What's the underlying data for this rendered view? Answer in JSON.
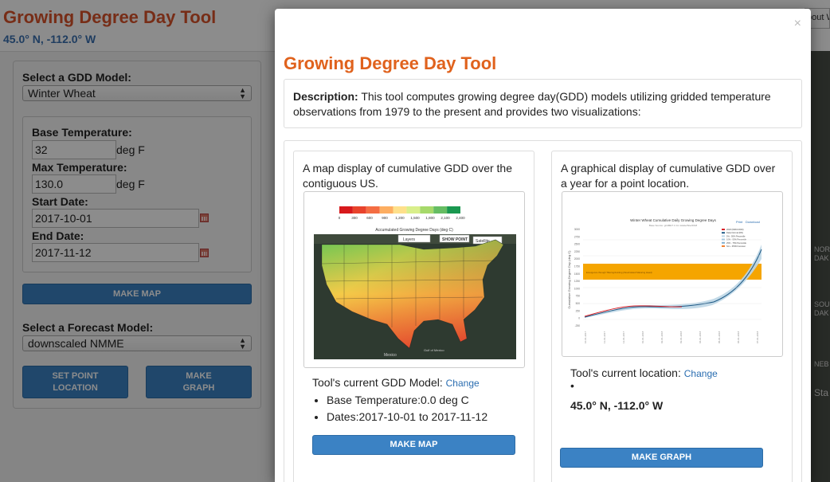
{
  "page": {
    "title": "Growing Degree Day Tool",
    "coords": "45.0° N, -112.0° W",
    "top_right_text": "bout W"
  },
  "form": {
    "gdd_model_label": "Select a GDD Model:",
    "gdd_model_value": "Winter Wheat",
    "base_temp_label": "Base Temperature:",
    "base_temp_value": "32",
    "base_temp_unit": "deg F",
    "max_temp_label": "Max Temperature:",
    "max_temp_value": "130.0",
    "max_temp_unit": "deg F",
    "start_date_label": "Start Date:",
    "start_date_value": "2017-10-01",
    "end_date_label": "End Date:",
    "end_date_value": "2017-11-12",
    "make_map_label": "MAKE MAP",
    "forecast_label": "Select a Forecast Model:",
    "forecast_value": "downscaled NMME",
    "set_point_label": "SET POINT LOCATION",
    "make_graph_label": "MAKE GRAPH"
  },
  "map_side_labels": [
    "NOR",
    "DAK",
    "SOU",
    "DAK",
    "NEB",
    "Sta"
  ],
  "modal": {
    "close_glyph": "×",
    "title": "Growing Degree Day Tool",
    "description_label": "Description:",
    "description_text": " This tool computes growing degree day(GDD) models utilizing gridded temperature observations from 1979 to the present and provides two visualizations:",
    "map_card": {
      "text": "A map display of cumulative GDD over the contiguous US.",
      "preview": {
        "legend_ticks": [
          "0",
          "300",
          "600",
          "900",
          "1,200",
          "1,500",
          "1,800",
          "2,100",
          "2,400"
        ],
        "legend_colors": [
          "#d7191c",
          "#e8432c",
          "#f46d43",
          "#fdae61",
          "#fee08b",
          "#d9ef8b",
          "#a6d96a",
          "#66bd63",
          "#1a9850"
        ],
        "title": "Accumulated Growing Degree Days (deg C)",
        "layers_label": "Layers",
        "show_point_label": "SHOW POINT",
        "satellite_label": "Satellite",
        "mexico_label": "Mexico",
        "gulf_label": "Gulf of Mexico"
      },
      "model_label": "Tool's current GDD Model:",
      "change_label": "Change",
      "bullets": [
        "Base Temperature:0.0 deg C",
        "Dates:2017-10-01 to 2017-11-12"
      ],
      "button_label": "MAKE MAP"
    },
    "graph_card": {
      "text": "A graphical display of cumulative GDD over a year for a point location.",
      "preview": {
        "title": "Winter Wheat Cumulative Daily Growing Degree Days",
        "subtitle": "Base Source: gridMET 1 Cm lokale/Site/2018",
        "print_label": "Print",
        "download_label": "Download",
        "ylabel": "Cumulative Growing Degree Day (deg C)",
        "yticks": [
          "3000",
          "2750",
          "2500",
          "2250",
          "2000",
          "1750",
          "1500",
          "1250",
          "1000",
          "750",
          "500",
          "250",
          "0",
          "-250"
        ],
        "band_label": "Emergence through Tillering/Jointing (thresholded/ Maturing Head)",
        "legend": [
          "2018 (WRCC/DRI)",
          "Daily Normal (DN)",
          "5% - 95% Percentile",
          "10% - 90% Percentile",
          "25% - 75% Percentile",
          "Sim - PNW Forecast"
        ]
      },
      "location_label": "Tool's current location:",
      "change_label": "Change",
      "location_value": "45.0° N, -112.0° W",
      "button_label": "MAKE GRAPH"
    }
  },
  "colors": {
    "title_orange": "#e0621d",
    "button_blue": "#3b82c4",
    "link_blue": "#2a6db0",
    "band_orange": "#f5a500"
  }
}
